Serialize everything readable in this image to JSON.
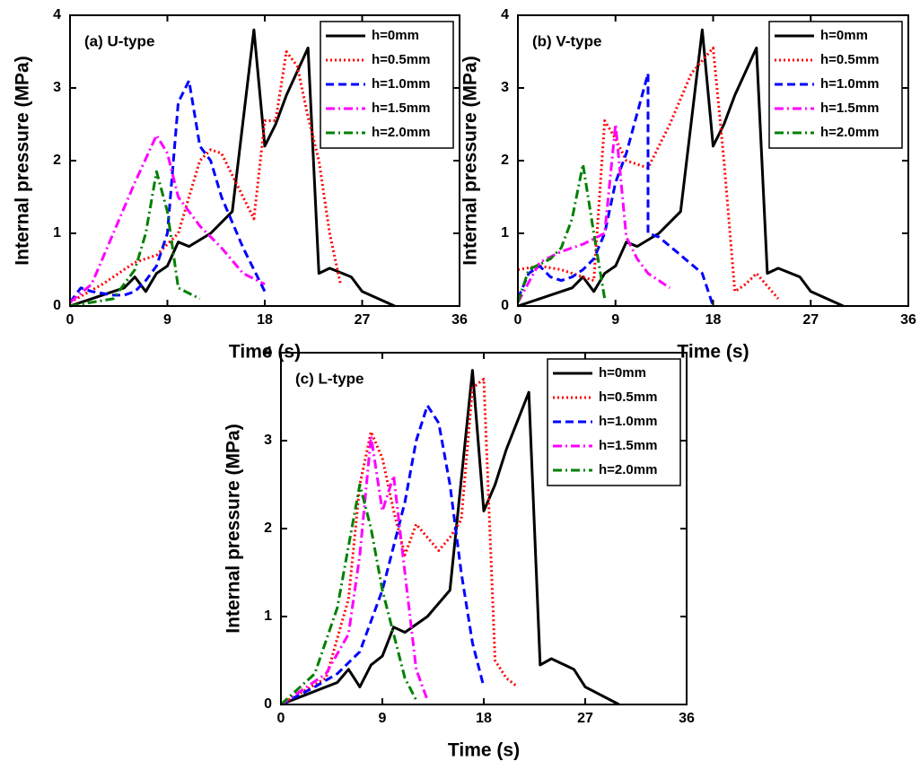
{
  "chart_data": [
    {
      "type": "line",
      "title": "(a) U-type",
      "title_color": "#0000ff",
      "xlabel": "Time (s)",
      "ylabel": "Internal pressure (MPa)",
      "xlim": [
        0,
        36
      ],
      "ylim": [
        0,
        4
      ],
      "xticks": [
        0,
        9,
        18,
        27,
        36
      ],
      "yticks": [
        0,
        1,
        2,
        3,
        4
      ],
      "legend": "upper right",
      "series": [
        {
          "name": "h=0mm",
          "color": "#000000",
          "dash": "solid",
          "x": [
            0,
            2,
            4,
            5,
            6,
            7,
            8,
            9,
            10,
            11,
            13,
            15,
            17,
            18,
            19,
            20,
            22,
            23,
            24,
            26,
            27,
            30
          ],
          "values": [
            0,
            0.1,
            0.2,
            0.25,
            0.4,
            0.2,
            0.45,
            0.55,
            0.88,
            0.82,
            1.0,
            1.3,
            3.8,
            2.2,
            2.5,
            2.9,
            3.55,
            0.45,
            0.52,
            0.4,
            0.2,
            0
          ]
        },
        {
          "name": "h=0.5mm",
          "color": "#ff0000",
          "dash": "dotted",
          "x": [
            0,
            3,
            6,
            8,
            10,
            11,
            12,
            13,
            14,
            15,
            16,
            17,
            18,
            19,
            20,
            21,
            22,
            23,
            24,
            25
          ],
          "values": [
            0.05,
            0.3,
            0.6,
            0.7,
            1.0,
            1.5,
            2.0,
            2.15,
            2.1,
            1.8,
            1.5,
            1.2,
            2.55,
            2.55,
            3.5,
            3.3,
            2.6,
            2.0,
            1.0,
            0.3
          ]
        },
        {
          "name": "h=1.0mm",
          "color": "#0000ff",
          "dash": "dashed",
          "x": [
            0,
            1,
            2,
            4,
            5,
            6,
            7,
            8,
            9,
            10,
            11,
            12,
            13,
            14,
            16,
            18
          ],
          "values": [
            0.05,
            0.25,
            0.2,
            0.15,
            0.15,
            0.2,
            0.35,
            0.55,
            1.0,
            2.8,
            3.1,
            2.2,
            2.0,
            1.5,
            0.8,
            0.2
          ]
        },
        {
          "name": "h=1.5mm",
          "color": "#ff00ff",
          "dash": "dashdot",
          "x": [
            0,
            2,
            4,
            6,
            8,
            9,
            10,
            12,
            14,
            16,
            18
          ],
          "values": [
            0.05,
            0.3,
            1.0,
            1.7,
            2.35,
            2.1,
            1.5,
            1.1,
            0.8,
            0.45,
            0.3
          ]
        },
        {
          "name": "h=2.0mm",
          "color": "#008000",
          "dash": "dashdot",
          "x": [
            0,
            2,
            4,
            6,
            7,
            8,
            9,
            10,
            12
          ],
          "values": [
            0,
            0.05,
            0.1,
            0.5,
            1.0,
            1.85,
            1.3,
            0.25,
            0.1
          ]
        }
      ]
    },
    {
      "type": "line",
      "title": "(b) V-type",
      "title_color": "#0000ff",
      "xlabel": "Time (s)",
      "ylabel": "Internal pressure (MPa)",
      "xlim": [
        0,
        36
      ],
      "ylim": [
        0,
        4
      ],
      "xticks": [
        0,
        9,
        18,
        27,
        36
      ],
      "yticks": [
        0,
        1,
        2,
        3,
        4
      ],
      "legend": "upper right",
      "series": [
        {
          "name": "h=0mm",
          "color": "#000000",
          "dash": "solid",
          "x": [
            0,
            2,
            4,
            5,
            6,
            7,
            8,
            9,
            10,
            11,
            13,
            15,
            17,
            18,
            19,
            20,
            22,
            23,
            24,
            26,
            27,
            30
          ],
          "values": [
            0,
            0.1,
            0.2,
            0.25,
            0.4,
            0.2,
            0.45,
            0.55,
            0.88,
            0.82,
            1.0,
            1.3,
            3.8,
            2.2,
            2.5,
            2.9,
            3.55,
            0.45,
            0.52,
            0.4,
            0.2,
            0
          ]
        },
        {
          "name": "h=0.5mm",
          "color": "#ff0000",
          "dash": "dotted",
          "x": [
            0,
            2,
            4,
            6,
            7,
            8,
            9,
            10,
            12,
            13,
            14,
            16,
            18,
            19,
            20,
            21,
            22,
            24
          ],
          "values": [
            0.5,
            0.55,
            0.5,
            0.4,
            0.35,
            2.55,
            2.3,
            2.0,
            1.9,
            2.2,
            2.5,
            3.2,
            3.55,
            2.0,
            0.2,
            0.3,
            0.45,
            0.1
          ]
        },
        {
          "name": "h=1.0mm",
          "color": "#0000ff",
          "dash": "dashed",
          "x": [
            0,
            1,
            2,
            3,
            4,
            5,
            6,
            7,
            8,
            9,
            10,
            12,
            12,
            13,
            15,
            17,
            18
          ],
          "values": [
            0.1,
            0.45,
            0.55,
            0.4,
            0.35,
            0.4,
            0.5,
            0.65,
            1.0,
            1.7,
            2.1,
            3.2,
            1.0,
            0.95,
            0.7,
            0.45,
            0
          ]
        },
        {
          "name": "h=1.5mm",
          "color": "#ff00ff",
          "dash": "dashdot",
          "x": [
            0,
            2,
            4,
            6,
            8,
            9,
            10,
            11,
            12,
            13,
            14
          ],
          "values": [
            0.05,
            0.6,
            0.75,
            0.85,
            1.0,
            2.5,
            0.95,
            0.65,
            0.45,
            0.35,
            0.25
          ]
        },
        {
          "name": "h=2.0mm",
          "color": "#008000",
          "dash": "dashdot",
          "x": [
            0,
            1,
            3,
            4,
            5,
            6,
            7,
            8
          ],
          "values": [
            0.05,
            0.5,
            0.65,
            0.8,
            1.2,
            1.95,
            1.0,
            0.1
          ]
        }
      ]
    },
    {
      "type": "line",
      "title": "(c) L-type",
      "title_color": "#0000ff",
      "xlabel": "Time (s)",
      "ylabel": "Internal pressure (MPa)",
      "xlim": [
        0,
        36
      ],
      "ylim": [
        0,
        4
      ],
      "xticks": [
        0,
        9,
        18,
        27,
        36
      ],
      "yticks": [
        0,
        1,
        2,
        3,
        4
      ],
      "legend": "upper right",
      "series": [
        {
          "name": "h=0mm",
          "color": "#000000",
          "dash": "solid",
          "x": [
            0,
            2,
            4,
            5,
            6,
            7,
            8,
            9,
            10,
            11,
            13,
            15,
            17,
            18,
            19,
            20,
            22,
            23,
            24,
            26,
            27,
            30
          ],
          "values": [
            0,
            0.1,
            0.2,
            0.25,
            0.4,
            0.2,
            0.45,
            0.55,
            0.88,
            0.82,
            1.0,
            1.3,
            3.8,
            2.2,
            2.5,
            2.9,
            3.55,
            0.45,
            0.52,
            0.4,
            0.2,
            0
          ]
        },
        {
          "name": "h=0.5mm",
          "color": "#ff0000",
          "dash": "dotted",
          "x": [
            0,
            4,
            6,
            7,
            8,
            9,
            10,
            11,
            12,
            13,
            14,
            15,
            16,
            17,
            18,
            19,
            20,
            21
          ],
          "values": [
            0,
            0.3,
            1.2,
            2.5,
            3.1,
            2.8,
            2.2,
            1.7,
            2.05,
            1.9,
            1.75,
            1.9,
            2.1,
            3.6,
            3.7,
            0.5,
            0.3,
            0.2
          ]
        },
        {
          "name": "h=1.0mm",
          "color": "#0000ff",
          "dash": "dashed",
          "x": [
            0,
            3,
            5,
            7,
            9,
            11,
            12,
            13,
            14,
            15,
            16,
            17,
            18
          ],
          "values": [
            0,
            0.2,
            0.35,
            0.6,
            1.3,
            2.3,
            3.0,
            3.4,
            3.2,
            2.5,
            1.5,
            0.7,
            0.2
          ]
        },
        {
          "name": "h=1.5mm",
          "color": "#ff00ff",
          "dash": "dashdot",
          "x": [
            0,
            4,
            6,
            7,
            8,
            9,
            10,
            11,
            12,
            13
          ],
          "values": [
            0,
            0.35,
            0.8,
            1.7,
            3.05,
            2.2,
            2.6,
            1.5,
            0.4,
            0.05
          ]
        },
        {
          "name": "h=2.0mm",
          "color": "#008000",
          "dash": "dashdot",
          "x": [
            0,
            3,
            5,
            6,
            7,
            8,
            9,
            10,
            11,
            12
          ],
          "values": [
            0,
            0.35,
            1.1,
            1.8,
            2.5,
            2.0,
            1.3,
            0.8,
            0.3,
            0.05
          ]
        }
      ]
    }
  ]
}
